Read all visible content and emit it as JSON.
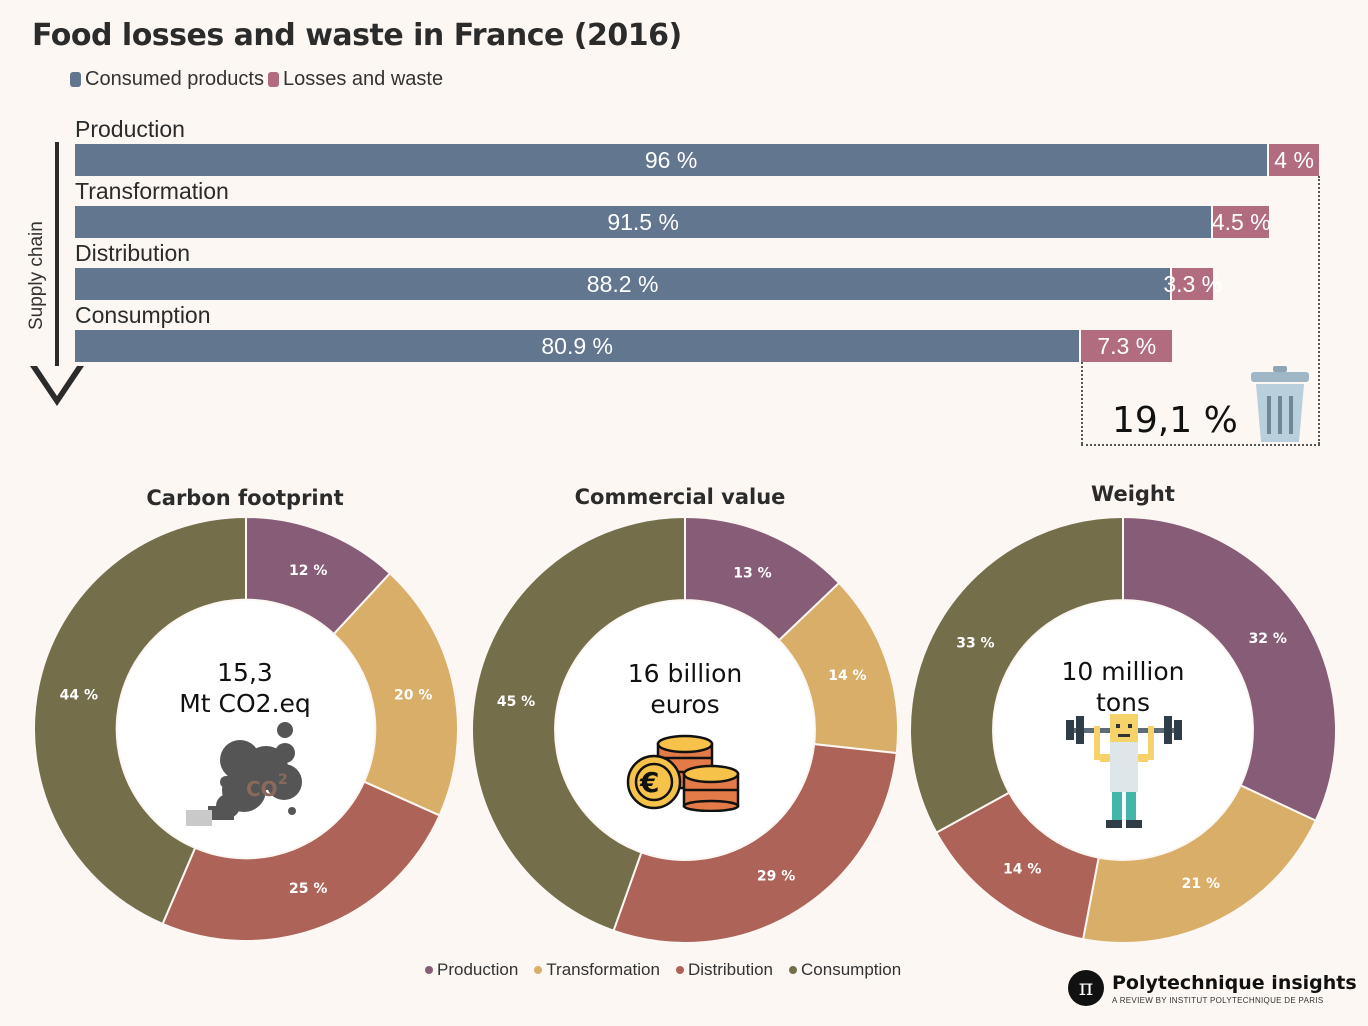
{
  "header": {
    "title": "Food losses and waste in France (2016)",
    "legend": [
      {
        "label": "Consumed products",
        "color": "#63768f"
      },
      {
        "label": "Losses and waste",
        "color": "#b16d7f"
      }
    ],
    "axis_label": "Supply chain",
    "total_waste": "19,1 %"
  },
  "chart_data": [
    {
      "type": "bar",
      "orientation": "horizontal-stacked",
      "title": "Food losses and waste in France (2016)",
      "ylabel": "Supply chain",
      "categories": [
        "Production",
        "Transformation",
        "Distribution",
        "Consumption"
      ],
      "series": [
        {
          "name": "Consumed products",
          "values": [
            96,
            91.5,
            88.2,
            80.9
          ],
          "labels": [
            "96 %",
            "91.5 %",
            "88.2 %",
            "80.9 %"
          ],
          "color": "#63768f"
        },
        {
          "name": "Losses and waste",
          "values": [
            4,
            4.5,
            3.3,
            7.3
          ],
          "labels": [
            "4 %",
            "4.5 %",
            "3.3 %",
            "7.3 %"
          ],
          "color": "#b16d7f"
        }
      ],
      "annotation": "19,1 %"
    },
    {
      "type": "pie",
      "variant": "donut",
      "title": "Carbon footprint",
      "center_label": [
        "15,3",
        "Mt CO2.eq"
      ],
      "categories": [
        "Production",
        "Transformation",
        "Distribution",
        "Consumption"
      ],
      "values": [
        12,
        20,
        25,
        44
      ],
      "labels": [
        "12 %",
        "20 %",
        "25 %",
        "44 %"
      ]
    },
    {
      "type": "pie",
      "variant": "donut",
      "title": "Commercial value",
      "center_label": [
        "16 billion",
        "euros"
      ],
      "categories": [
        "Production",
        "Transformation",
        "Distribution",
        "Consumption"
      ],
      "values": [
        13,
        14,
        29,
        45
      ],
      "labels": [
        "13 %",
        "14 %",
        "29 %",
        "45 %"
      ]
    },
    {
      "type": "pie",
      "variant": "donut",
      "title": "Weight",
      "center_label": [
        "10 million",
        "tons"
      ],
      "categories": [
        "Production",
        "Transformation",
        "Distribution",
        "Consumption"
      ],
      "values": [
        32,
        21,
        14,
        33
      ],
      "labels": [
        "32 %",
        "21 %",
        "14 %",
        "33 %"
      ]
    }
  ],
  "stage_colors": {
    "Production": "#875c76",
    "Transformation": "#d9ae68",
    "Distribution": "#ad6357",
    "Consumption": "#746e4a"
  },
  "bottom_legend": [
    "Production",
    "Transformation",
    "Distribution",
    "Consumption"
  ],
  "icons": {
    "trash": "trash-can-icon",
    "co2": "co2-cloud-icon",
    "coins": "euro-coins-icon",
    "weightlifter": "weightlifter-icon"
  },
  "brand": {
    "logo": "π",
    "name": "Polytechnique insights",
    "subtitle": "A REVIEW BY INSTITUT POLYTECHNIQUE DE PARIS"
  }
}
